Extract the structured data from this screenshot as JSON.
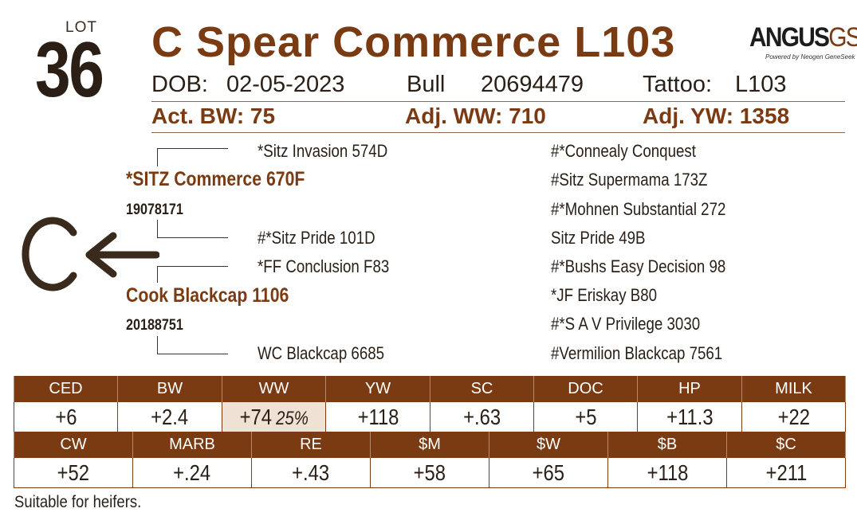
{
  "lot": {
    "label": "LOT",
    "number": "36"
  },
  "animal": {
    "name": "C Spear Commerce L103",
    "dob_label": "DOB:",
    "dob": "02-05-2023",
    "sex": "Bull",
    "reg": "20694479",
    "tattoo_label": "Tattoo:",
    "tattoo": "L103"
  },
  "weights": {
    "bw": "Act. BW: 75",
    "ww": "Adj. WW: 710",
    "yw": "Adj. YW: 1358"
  },
  "logo": {
    "main": "ANGUS",
    "accent": "GS",
    "tagline": "Powered by Neogen GeneSeek"
  },
  "pedigree": {
    "sire_sire": "*Sitz Invasion 574D",
    "sire": "*SITZ Commerce 670F",
    "sire_reg": "19078171",
    "sire_dam": "#*Sitz Pride 101D",
    "dam_sire": "*FF Conclusion F83",
    "dam": "Cook Blackcap 1106",
    "dam_reg": "20188751",
    "dam_dam": "WC Blackcap 6685",
    "right_col": [
      "#*Connealy Conquest",
      "#Sitz Supermama 173Z",
      "#*Mohnen Substantial 272",
      "Sitz Pride 49B",
      "#*Bushs Easy Decision 98",
      "*JF Eriskay B80",
      "#*S A V Privilege 3030",
      "#Vermilion Blackcap 7561"
    ]
  },
  "brand": {
    "icon": "c-arrow-brand-icon"
  },
  "epd_row1": {
    "headers": [
      "CED",
      "BW",
      "WW",
      "YW",
      "SC",
      "DOC",
      "HP",
      "MILK"
    ],
    "values": [
      "+6",
      "+2.4",
      "+74",
      "+118",
      "+.63",
      "+5",
      "+11.3",
      "+22"
    ],
    "ww_percentile": "25%"
  },
  "epd_row2": {
    "headers": [
      "CW",
      "MARB",
      "RE",
      "$M",
      "$W",
      "$B",
      "$C"
    ],
    "values": [
      "+52",
      "+.24",
      "+.43",
      "+58",
      "+65",
      "+118",
      "+211"
    ]
  },
  "footer": "Suitable for heifers.",
  "colors": {
    "brand_brown": "#7a3a12",
    "highlight": "#efe2d5",
    "text": "#2a2018"
  }
}
